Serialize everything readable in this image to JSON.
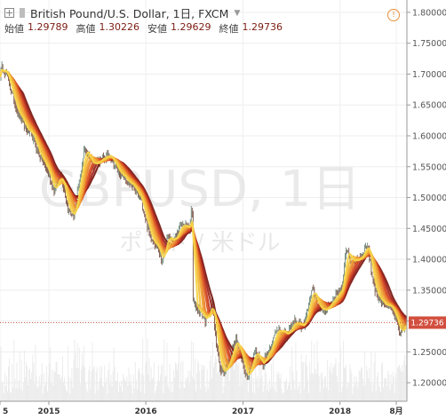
{
  "header": {
    "symbol_title": "British Pound/U.S. Dollar, 1日, FXCM",
    "ohlc": [
      {
        "label": "始値",
        "value": "1.29789"
      },
      {
        "label": "高値",
        "value": "1.30226"
      },
      {
        "label": "安値",
        "value": "1.29629"
      },
      {
        "label": "終値",
        "value": "1.29736"
      }
    ],
    "icons": [
      "expand-icon",
      "series-color-icon",
      "dropdown-caret-icon",
      "alert-icon"
    ]
  },
  "watermark": {
    "main": "GBPUSD, 1日",
    "sub": "ポンド / 米ドル"
  },
  "price_tag": {
    "value": 1.29736,
    "label": "1.29736",
    "color": "#d24f3f"
  },
  "colors": {
    "up": "#5f7a6a",
    "down": "#6b3d2e",
    "volume": "#eaeaea",
    "ribbon": [
      "#7a1c16",
      "#a3251c",
      "#c63a22",
      "#dc5a26",
      "#e8802b",
      "#efa034",
      "#f3bd3f",
      "#f6d54a"
    ]
  },
  "chart_data": {
    "type": "candlestick",
    "ylim": [
      1.17,
      1.82
    ],
    "y_ticks": [
      1.2,
      1.25,
      1.3,
      1.35,
      1.4,
      1.45,
      1.5,
      1.55,
      1.6,
      1.65,
      1.7,
      1.75,
      1.8
    ],
    "y_tick_labels": [
      "1.20000",
      "1.25000",
      "1.30000",
      "1.35000",
      "1.40000",
      "1.45000",
      "1.50000",
      "1.55000",
      "1.60000",
      "1.65000",
      "1.70000",
      "1.75000",
      "1.80000"
    ],
    "xlim": [
      "2014-07-01",
      "2018-09-10"
    ],
    "x_ticks": [
      {
        "date": "2014-07-01",
        "label": "5"
      },
      {
        "date": "2015-01-01",
        "label": "2015"
      },
      {
        "date": "2016-01-01",
        "label": "2016"
      },
      {
        "date": "2017-01-01",
        "label": "2017"
      },
      {
        "date": "2018-01-01",
        "label": "2018"
      },
      {
        "date": "2018-08-01",
        "label": "8月"
      }
    ],
    "grid": true,
    "close_path": [
      [
        "2014-07-01",
        1.7
      ],
      [
        "2014-07-10",
        1.712
      ],
      [
        "2014-07-25",
        1.7
      ],
      [
        "2014-08-15",
        1.668
      ],
      [
        "2014-09-05",
        1.64
      ],
      [
        "2014-10-01",
        1.615
      ],
      [
        "2014-11-01",
        1.598
      ],
      [
        "2014-12-01",
        1.565
      ],
      [
        "2015-01-01",
        1.54
      ],
      [
        "2015-01-20",
        1.51
      ],
      [
        "2015-02-15",
        1.54
      ],
      [
        "2015-03-15",
        1.48
      ],
      [
        "2015-04-05",
        1.47
      ],
      [
        "2015-05-01",
        1.54
      ],
      [
        "2015-05-15",
        1.58
      ],
      [
        "2015-06-15",
        1.555
      ],
      [
        "2015-07-15",
        1.56
      ],
      [
        "2015-08-20",
        1.57
      ],
      [
        "2015-09-15",
        1.545
      ],
      [
        "2015-10-15",
        1.53
      ],
      [
        "2015-11-15",
        1.515
      ],
      [
        "2015-12-15",
        1.495
      ],
      [
        "2016-01-15",
        1.44
      ],
      [
        "2016-02-15",
        1.42
      ],
      [
        "2016-03-01",
        1.395
      ],
      [
        "2016-03-20",
        1.435
      ],
      [
        "2016-04-15",
        1.43
      ],
      [
        "2016-05-15",
        1.455
      ],
      [
        "2016-06-15",
        1.45
      ],
      [
        "2016-06-23",
        1.495
      ],
      [
        "2016-06-27",
        1.33
      ],
      [
        "2016-07-15",
        1.32
      ],
      [
        "2016-08-15",
        1.3
      ],
      [
        "2016-09-05",
        1.33
      ],
      [
        "2016-10-07",
        1.22
      ],
      [
        "2016-10-25",
        1.22
      ],
      [
        "2016-11-15",
        1.245
      ],
      [
        "2016-12-05",
        1.27
      ],
      [
        "2017-01-15",
        1.21
      ],
      [
        "2017-02-15",
        1.25
      ],
      [
        "2017-03-15",
        1.23
      ],
      [
        "2017-04-15",
        1.26
      ],
      [
        "2017-05-15",
        1.29
      ],
      [
        "2017-06-15",
        1.275
      ],
      [
        "2017-07-15",
        1.3
      ],
      [
        "2017-08-15",
        1.29
      ],
      [
        "2017-09-20",
        1.35
      ],
      [
        "2017-10-20",
        1.315
      ],
      [
        "2017-11-20",
        1.325
      ],
      [
        "2017-12-15",
        1.34
      ],
      [
        "2018-01-10",
        1.355
      ],
      [
        "2018-01-25",
        1.42
      ],
      [
        "2018-02-15",
        1.395
      ],
      [
        "2018-03-20",
        1.405
      ],
      [
        "2018-04-15",
        1.425
      ],
      [
        "2018-05-01",
        1.375
      ],
      [
        "2018-05-20",
        1.34
      ],
      [
        "2018-06-15",
        1.33
      ],
      [
        "2018-07-10",
        1.32
      ],
      [
        "2018-07-25",
        1.31
      ],
      [
        "2018-08-15",
        1.275
      ],
      [
        "2018-08-25",
        1.29
      ],
      [
        "2018-09-10",
        1.297
      ]
    ],
    "last_close": 1.29736
  }
}
